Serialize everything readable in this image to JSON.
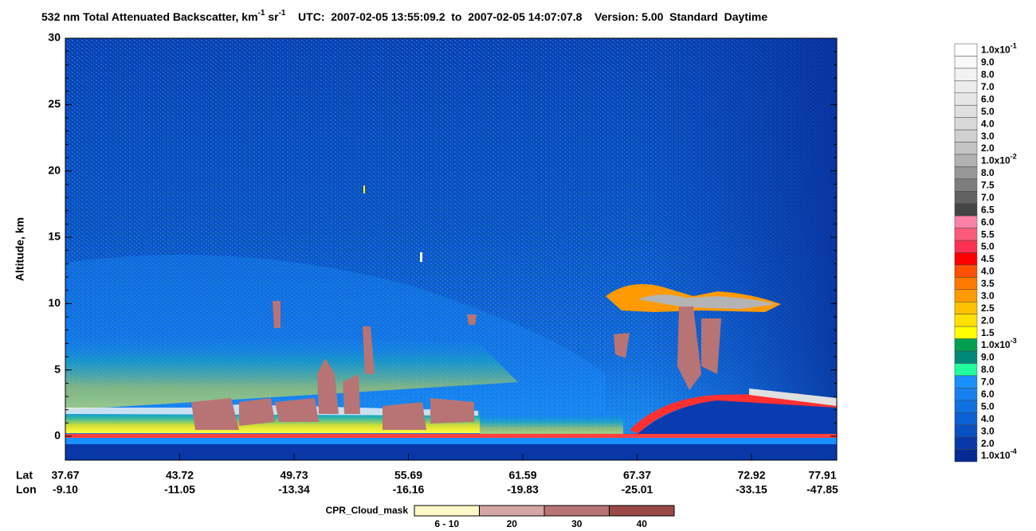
{
  "chart_data": {
    "type": "curtain",
    "title": [
      {
        "text": "532 nm Total Attenuated Backscatter, km"
      },
      {
        "text": "-1",
        "sup": true
      },
      {
        "text": " sr"
      },
      {
        "text": "-1",
        "sup": true
      },
      {
        "text": "    UTC:  2007-02-05 13:55:09.2  to  2007-02-05 14:07:07.8    Version: 5.00  Standard  Daytime"
      }
    ],
    "ylabel": "Altitude, km",
    "ylim": [
      -1.8,
      30
    ],
    "yticks": [
      0,
      5,
      10,
      15,
      20,
      25,
      30
    ],
    "x_row_labels": [
      "Lat",
      "Lon"
    ],
    "lat": [
      "37.67",
      "43.72",
      "49.73",
      "55.69",
      "61.59",
      "67.37",
      "72.92",
      "77.91"
    ],
    "lon": [
      "-9.10",
      "-11.05",
      "-13.34",
      "-16.16",
      "-19.83",
      "-25.01",
      "-33.15",
      "-47.85"
    ],
    "colorbar": {
      "labels": [
        [
          "1.0x10",
          "-1"
        ],
        "9.0",
        "8.0",
        "7.0",
        "6.0",
        "5.0",
        "4.0",
        "3.0",
        "2.0",
        [
          "1.0x10",
          "-2"
        ],
        "8.0",
        "7.5",
        "7.0",
        "6.5",
        "6.0",
        "5.5",
        "5.0",
        "4.5",
        "4.0",
        "3.5",
        "3.0",
        "2.5",
        "2.0",
        "1.5",
        [
          "1.0x10",
          "-3"
        ],
        "9.0",
        "8.0",
        "7.0",
        "6.0",
        "5.0",
        "4.0",
        "3.0",
        "2.0",
        [
          "1.0x10",
          "-4"
        ]
      ],
      "colors": [
        "#ffffff",
        "#f8f8f8",
        "#f2f2f2",
        "#ececec",
        "#e6e6e6",
        "#e0e0e0",
        "#d9d9d9",
        "#d0d0d0",
        "#c4c4c4",
        "#b2b2b2",
        "#989898",
        "#7e7e7e",
        "#626262",
        "#454545",
        "#ff80a8",
        "#ff5a7a",
        "#ff3050",
        "#ff0000",
        "#ff5000",
        "#ff7800",
        "#ff9a00",
        "#ffc000",
        "#ffe000",
        "#ffff00",
        "#00a050",
        "#008878",
        "#20ffa0",
        "#1a90ff",
        "#1680f0",
        "#1070e0",
        "#0c62d4",
        "#0850c0",
        "#0838a8",
        "#062a92"
      ]
    },
    "cloud_mask": {
      "title": "CPR_Cloud_mask",
      "labels": [
        "6 - 10",
        "20",
        "30",
        "40"
      ],
      "colors": [
        "#fff8c8",
        "#d4a6a6",
        "#b87474",
        "#9a4848"
      ]
    }
  }
}
